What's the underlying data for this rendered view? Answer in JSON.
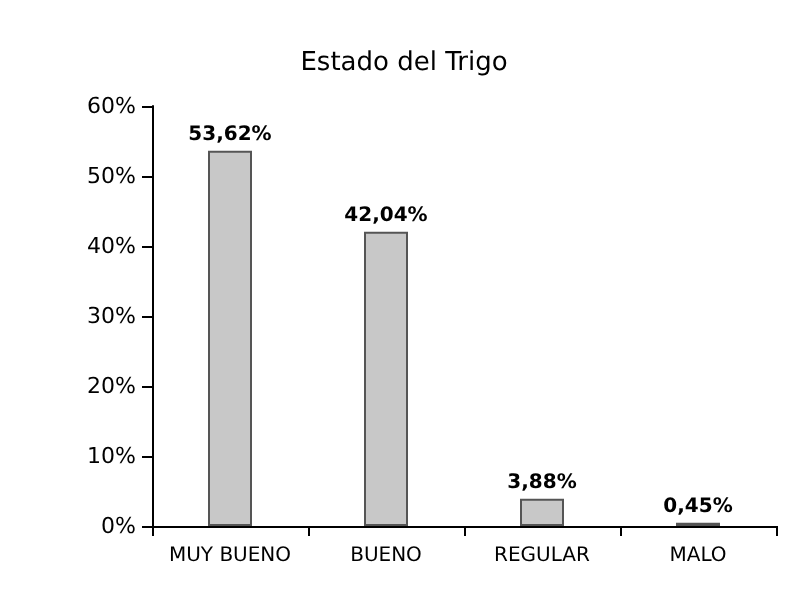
{
  "chart_data": {
    "type": "bar",
    "title": "Estado del Trigo",
    "categories": [
      "MUY BUENO",
      "BUENO",
      "REGULAR",
      "MALO"
    ],
    "values": [
      53.62,
      42.04,
      3.88,
      0.45
    ],
    "value_labels": [
      "53,62%",
      "42,04%",
      "3,88%",
      "0,45%"
    ],
    "color": "#c8c8c8",
    "ylim": [
      0,
      60
    ],
    "yticks": [
      {
        "value": 0,
        "label": "0%"
      },
      {
        "value": 10,
        "label": "10%"
      },
      {
        "value": 20,
        "label": "20%"
      },
      {
        "value": 30,
        "label": "30%"
      },
      {
        "value": 40,
        "label": "40%"
      },
      {
        "value": 50,
        "label": "50%"
      },
      {
        "value": 60,
        "label": "60%"
      }
    ],
    "grid": false
  }
}
